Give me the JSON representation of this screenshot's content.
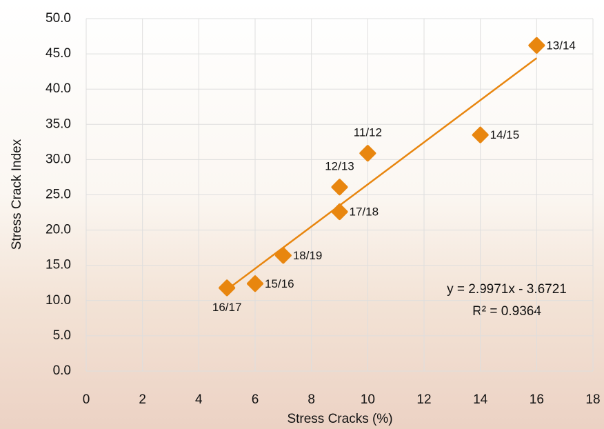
{
  "chart_data": {
    "type": "scatter",
    "x_label": "Stress Cracks (%)",
    "y_label": "Stress Crack Index",
    "series": [
      {
        "color": "#e8860f",
        "labels": [
          "13/14",
          "14/15",
          "11/12",
          "12/13",
          "17/18",
          "18/19",
          "15/16",
          "16/17"
        ],
        "x": [
          16,
          14,
          10,
          9,
          9,
          7,
          6,
          5
        ],
        "values": [
          46.2,
          33.5,
          30.9,
          26.1,
          22.6,
          16.4,
          12.4,
          11.8
        ]
      }
    ],
    "trendline": {
      "equation": "y = 2.9971x - 3.6721",
      "r_squared": "R² = 0.9364"
    },
    "xlim": [
      0,
      18
    ],
    "xticks": [
      0,
      2,
      4,
      6,
      8,
      10,
      12,
      14,
      16,
      18
    ],
    "ylim": [
      0,
      50
    ],
    "yticks": [
      {
        "value": 0,
        "label": "0.0"
      },
      {
        "value": 5,
        "label": "5.0"
      },
      {
        "value": 10,
        "label": "10.0"
      },
      {
        "value": 15,
        "label": "15.0"
      },
      {
        "value": 20,
        "label": "20.0"
      },
      {
        "value": 25,
        "label": "25.0"
      },
      {
        "value": 30,
        "label": "30.0"
      },
      {
        "value": 35,
        "label": "35.0"
      },
      {
        "value": 40,
        "label": "40.0"
      },
      {
        "value": 45,
        "label": "45.0"
      },
      {
        "value": 50,
        "label": "50.0"
      }
    ],
    "grid": true
  }
}
